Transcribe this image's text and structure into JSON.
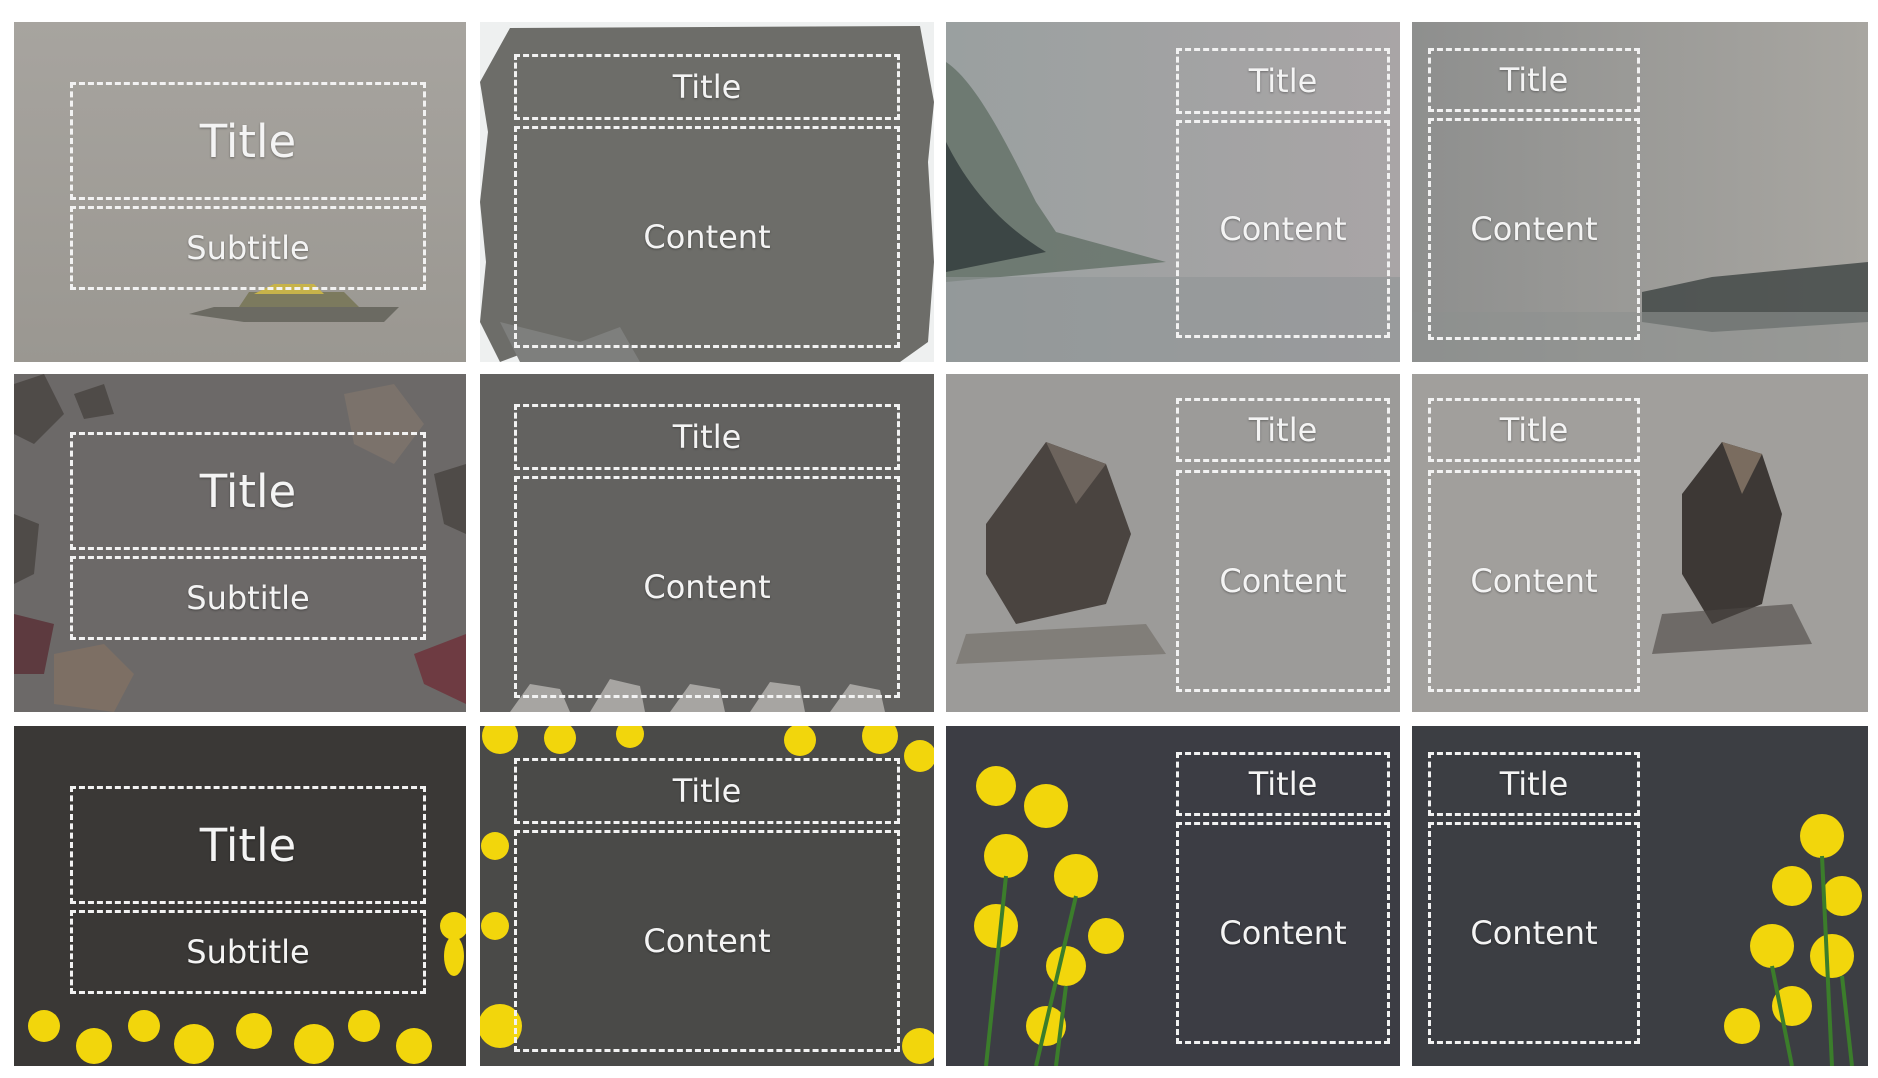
{
  "labels": {
    "title": "Title",
    "subtitle": "Subtitle",
    "content": "Content"
  },
  "rows": [
    {
      "theme": "watercolor-lake",
      "tiles": [
        {
          "layout": "title-slide",
          "texts": [
            "Title",
            "Subtitle"
          ]
        },
        {
          "layout": "title-content",
          "texts": [
            "Title",
            "Content"
          ]
        },
        {
          "layout": "title-content-right",
          "texts": [
            "Title",
            "Content"
          ]
        },
        {
          "layout": "title-content-left",
          "texts": [
            "Title",
            "Content"
          ]
        }
      ]
    },
    {
      "theme": "stones",
      "tiles": [
        {
          "layout": "title-slide",
          "texts": [
            "Title",
            "Subtitle"
          ]
        },
        {
          "layout": "title-content",
          "texts": [
            "Title",
            "Content"
          ]
        },
        {
          "layout": "title-content-right",
          "texts": [
            "Title",
            "Content"
          ]
        },
        {
          "layout": "title-content-left",
          "texts": [
            "Title",
            "Content"
          ]
        }
      ]
    },
    {
      "theme": "yellow-flowers",
      "tiles": [
        {
          "layout": "title-slide",
          "texts": [
            "Title",
            "Subtitle"
          ]
        },
        {
          "layout": "title-content",
          "texts": [
            "Title",
            "Content"
          ]
        },
        {
          "layout": "title-content-right",
          "texts": [
            "Title",
            "Content"
          ]
        },
        {
          "layout": "title-content-left",
          "texts": [
            "Title",
            "Content"
          ]
        }
      ]
    }
  ],
  "colors": {
    "placeholder_border": "#f2f2f2",
    "text": "#f4f4f4",
    "flower_yellow": "#f2d60c",
    "stone_gray": "#5a5550"
  }
}
